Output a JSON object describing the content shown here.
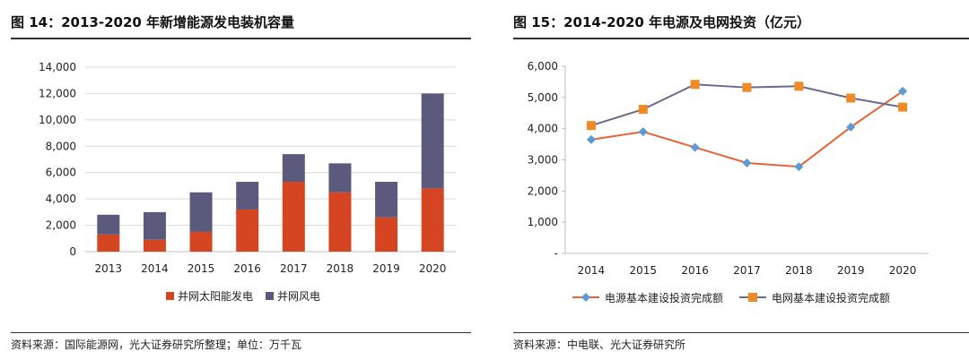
{
  "colors": {
    "solar": "#d64521",
    "wind": "#5b5a7c",
    "grid_line": "#d9d9d9",
    "axis_line": "#bfbfbf",
    "power_source_line": "#e8633a",
    "power_source_marker": "#5b9bd5",
    "grid_invest_line": "#6b6990",
    "grid_invest_marker": "#f08a24"
  },
  "chart_data": [
    {
      "type": "bar",
      "stacked": true,
      "title": "图 14：2013-2020 年新增能源发电装机容量",
      "categories": [
        "2013",
        "2014",
        "2015",
        "2016",
        "2017",
        "2018",
        "2019",
        "2020"
      ],
      "series": [
        {
          "name": "并网太阳能发电",
          "values": [
            1300,
            900,
            1500,
            3200,
            5300,
            4500,
            2600,
            4800
          ]
        },
        {
          "name": "并网风电",
          "values": [
            1500,
            2100,
            3000,
            2100,
            2100,
            2200,
            2700,
            7200
          ]
        }
      ],
      "yticks": [
        "0",
        "2,000",
        "4,000",
        "6,000",
        "8,000",
        "10,000",
        "12,000",
        "14,000"
      ],
      "ylim": [
        0,
        14000
      ],
      "xlabel": "",
      "ylabel": "",
      "legend_position": "bottom",
      "grid": true,
      "source": "资料来源：国际能源网，光大证券研究所整理；单位：万千瓦"
    },
    {
      "type": "line",
      "title": "图 15：2014-2020 年电源及电网投资（亿元）",
      "categories": [
        "2014",
        "2015",
        "2016",
        "2017",
        "2018",
        "2019",
        "2020"
      ],
      "series": [
        {
          "name": "电源基本建设投资完成额",
          "marker": "diamond",
          "values": [
            3650,
            3900,
            3400,
            2900,
            2780,
            4050,
            5200
          ]
        },
        {
          "name": "电网基本建设投资完成额",
          "marker": "square",
          "values": [
            4100,
            4620,
            5420,
            5320,
            5360,
            4980,
            4690
          ]
        }
      ],
      "yticks": [
        "-",
        "1,000",
        "2,000",
        "3,000",
        "4,000",
        "5,000",
        "6,000"
      ],
      "ylim": [
        0,
        6000
      ],
      "xlabel": "",
      "ylabel": "",
      "legend_position": "bottom",
      "grid": false,
      "source": "资料来源：中电联、光大证券研究所"
    }
  ]
}
